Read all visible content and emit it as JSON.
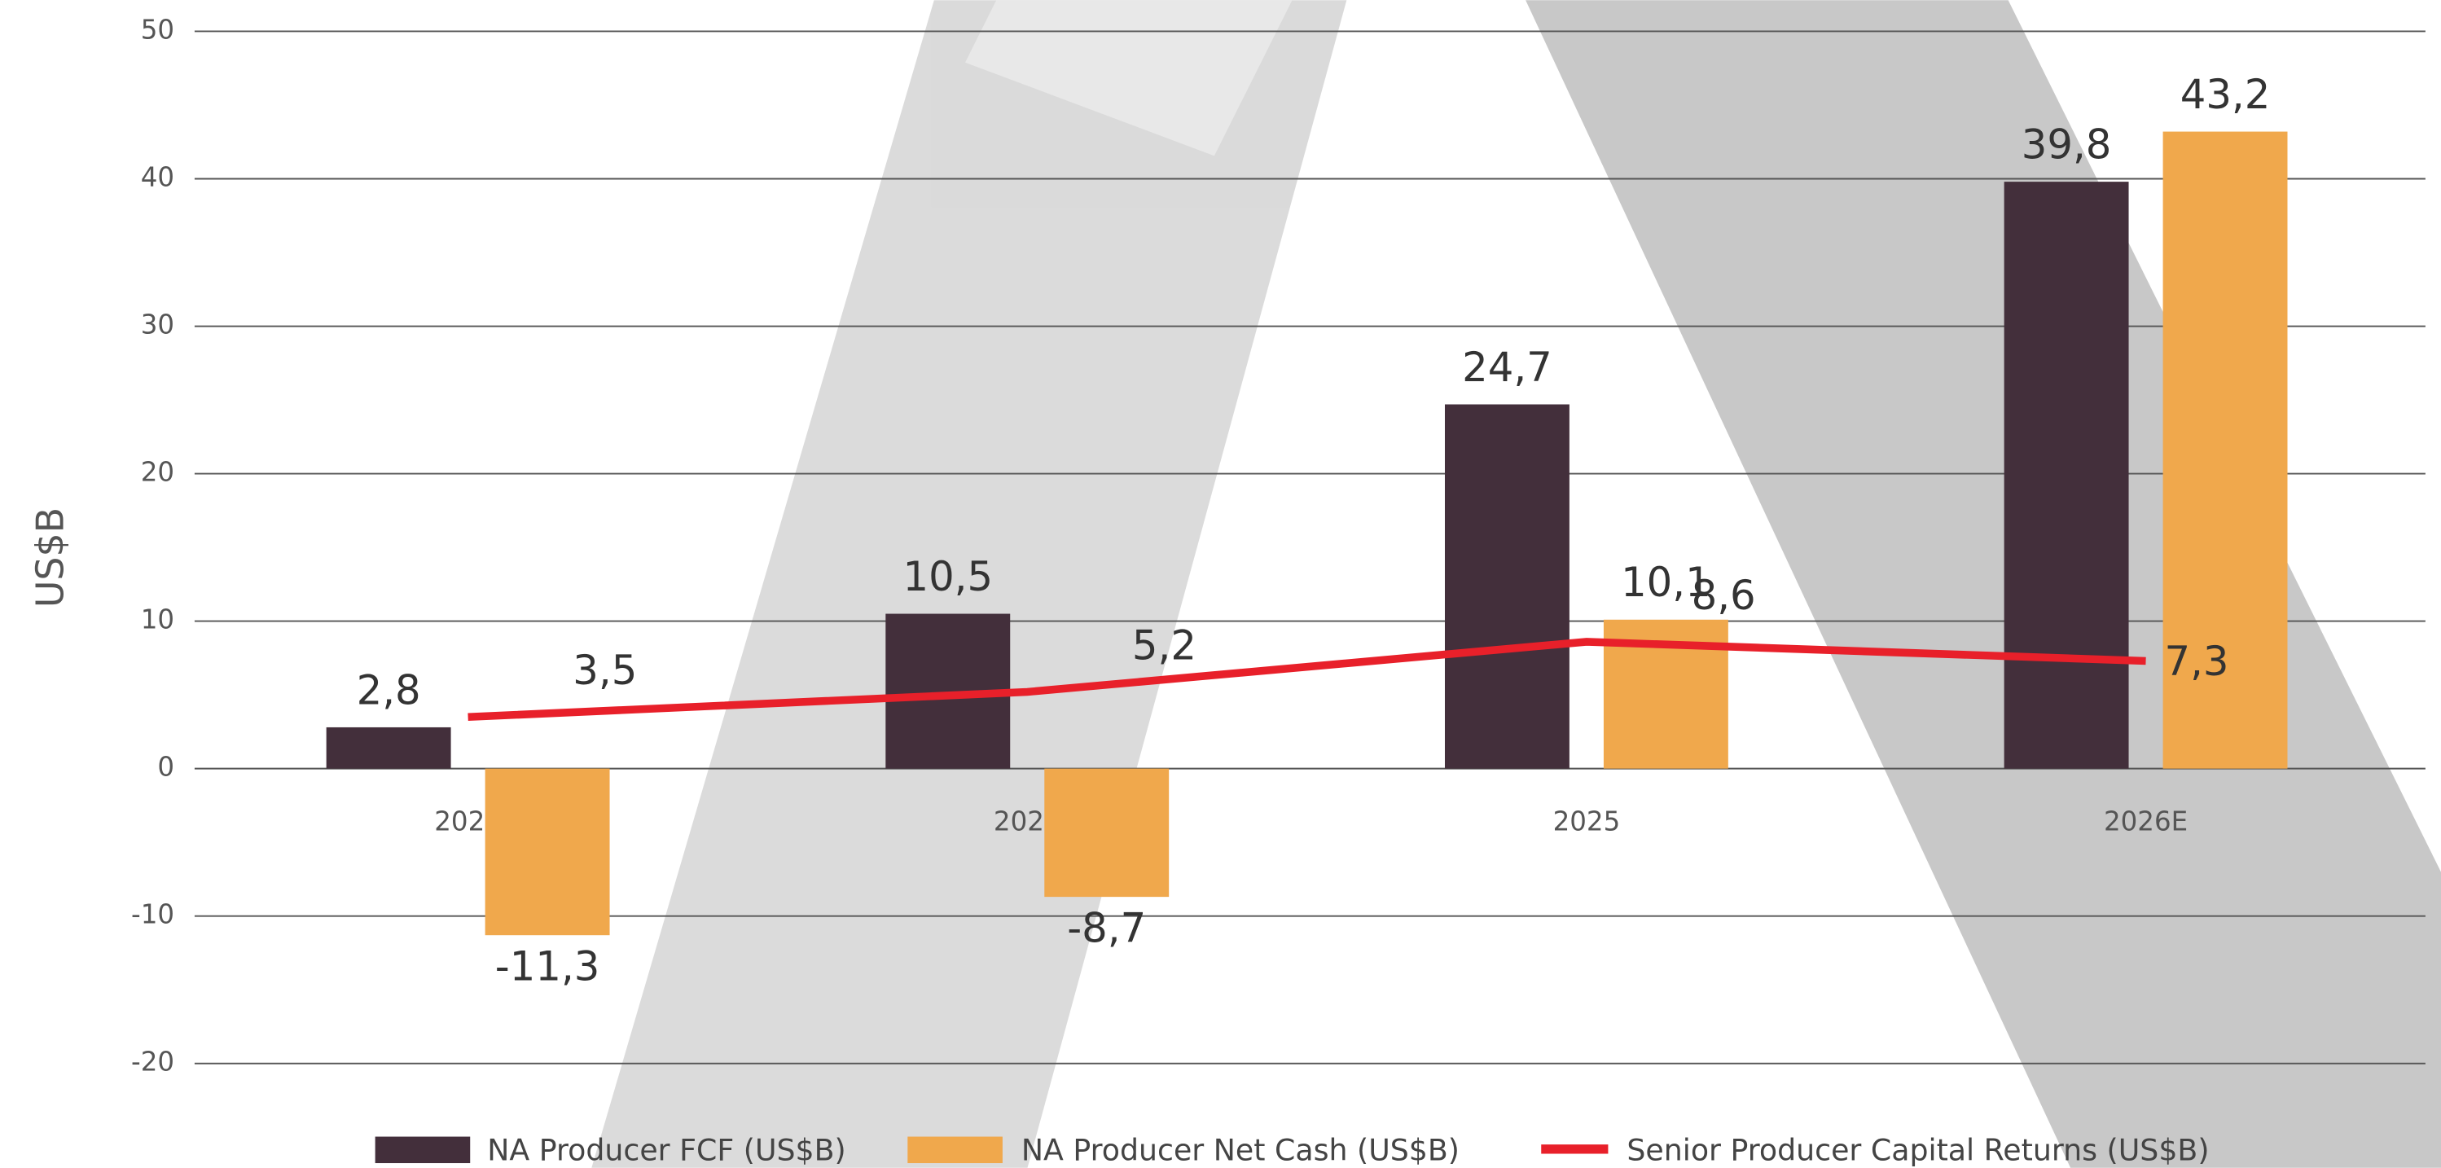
{
  "chart_data": {
    "type": "bar",
    "ylabel": "US$B",
    "categories": [
      "2023",
      "2024",
      "2025",
      "2026E"
    ],
    "series": [
      {
        "name": "NA Producer FCF (US$B)",
        "type": "bar",
        "color": "#432f3b",
        "values": [
          2.8,
          10.5,
          24.7,
          39.8
        ],
        "value_labels": [
          "2,8",
          "10,5",
          "24,7",
          "39,8"
        ]
      },
      {
        "name": "NA Producer Net Cash (US$B)",
        "type": "bar",
        "color": "#f0a84c",
        "values": [
          -11.3,
          -8.7,
          10.1,
          43.2
        ],
        "value_labels": [
          "-11,3",
          "-8,7",
          "10,1",
          "43,2"
        ]
      },
      {
        "name": "Senior Producer Capital Returns (US$B)",
        "type": "line",
        "color": "#e8202a",
        "values": [
          3.5,
          5.2,
          8.6,
          7.3
        ],
        "value_labels": [
          "3,5",
          "5,2",
          "8,6",
          "7,3"
        ]
      }
    ],
    "ylim": [
      -20,
      50
    ],
    "yticks": [
      -20,
      -10,
      0,
      10,
      20,
      30,
      40,
      50
    ],
    "grid": true
  }
}
